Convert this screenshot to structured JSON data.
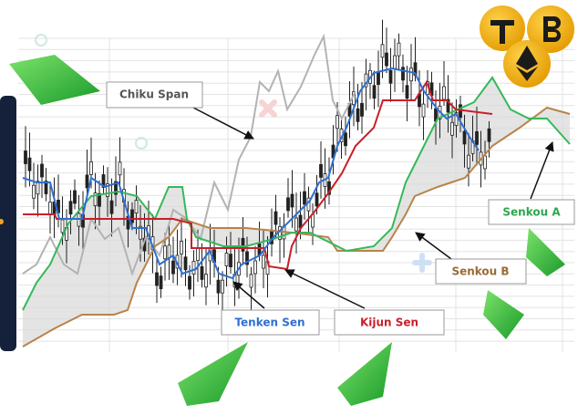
{
  "labels": {
    "chiku": "Chiku Span",
    "tenken": "Tenken Sen",
    "kijun": "Kijun Sen",
    "senkou_b": "Senkou B",
    "senkou_a": "Senkou A"
  }
}
